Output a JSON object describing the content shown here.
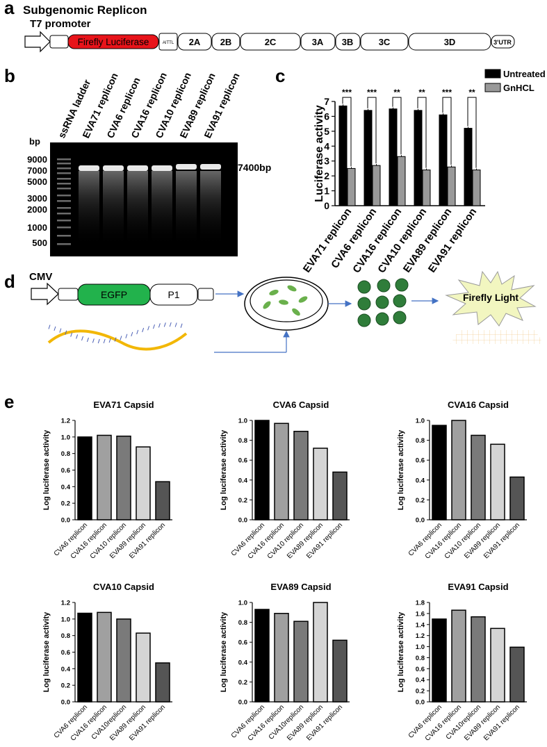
{
  "panel_a": {
    "letter": "a",
    "title": "Subgenomic Replicon",
    "promoter": "T7 promoter",
    "segments": [
      "Firefly Luciferase",
      "AITTL",
      "2A",
      "2B",
      "2C",
      "3A",
      "3B",
      "3C",
      "3D",
      "3'UTR"
    ],
    "luciferase_color": "#e8141a"
  },
  "panel_b": {
    "letter": "b",
    "lanes": [
      "ssRNA ladder",
      "EVA71 replicon",
      "CVA6 replicon",
      "CVA16 replicon",
      "CVA10 replicon",
      "EVA89 replicon",
      "EVA91 replicon"
    ],
    "bp_label": "bp",
    "ladder_marks": [
      "9000",
      "7000",
      "5000",
      "3000",
      "2000",
      "1000",
      "500"
    ],
    "band_label": "7400bp"
  },
  "panel_c": {
    "letter": "c",
    "legend": [
      "Untreated",
      "GnHCL"
    ],
    "significance": [
      "***",
      "***",
      "**",
      "**",
      "***",
      "**"
    ]
  },
  "panel_d": {
    "letter": "d",
    "promoter": "CMV",
    "box1": "EGFP",
    "box2": "P1",
    "output": "Firefly Light",
    "egfp_color": "#22b24c"
  },
  "panel_e": {
    "letter": "e"
  },
  "chart_data": [
    {
      "type": "bar",
      "ylabel": "Luciferase activity",
      "categories": [
        "EVA71 replicon",
        "CVA6 replicon",
        "CVA16 replicon",
        "CVA10 replicon",
        "EVA89 replicon",
        "EVA91 replicon"
      ],
      "series": [
        {
          "name": "Untreated",
          "values": [
            6.7,
            6.4,
            6.5,
            6.4,
            6.1,
            5.2
          ],
          "color": "#000000"
        },
        {
          "name": "GnHCL",
          "values": [
            2.5,
            2.7,
            3.3,
            2.4,
            2.6,
            2.4
          ],
          "color": "#999999"
        }
      ],
      "ylim": [
        0,
        7
      ],
      "yticks": [
        "0",
        "1",
        "2",
        "3",
        "4",
        "5",
        "6",
        "7"
      ]
    },
    {
      "type": "bar",
      "title": "EVA71 Capsid",
      "ylabel": "Log luciferase activity",
      "categories": [
        "CVA6 replicon",
        "CVA16 replicon",
        "CVA10 replicon",
        "EVA89 replicon",
        "EVA91 replicon"
      ],
      "values": [
        1.0,
        1.02,
        1.01,
        0.88,
        0.46
      ],
      "ylim": [
        0,
        1.2
      ],
      "yticks": [
        "0.0",
        "0.2",
        "0.4",
        "0.6",
        "0.8",
        "1.0",
        "1.2"
      ],
      "colors": [
        "#000000",
        "#a0a0a0",
        "#7a7a7a",
        "#d4d4d4",
        "#555555"
      ]
    },
    {
      "type": "bar",
      "title": "CVA6 Capsid",
      "ylabel": "Log luciferase activity",
      "categories": [
        "CVA6 replicon",
        "CVA16 replicon",
        "CVA10 replicon",
        "EVA89 replicon",
        "EVA91 replicon"
      ],
      "values": [
        1.0,
        0.97,
        0.89,
        0.72,
        0.48
      ],
      "ylim": [
        0,
        1.0
      ],
      "yticks": [
        "0.0",
        "0.2",
        "0.4",
        "0.6",
        "0.8",
        "1.0"
      ],
      "colors": [
        "#000000",
        "#a0a0a0",
        "#7a7a7a",
        "#d4d4d4",
        "#555555"
      ]
    },
    {
      "type": "bar",
      "title": "CVA16 Capsid",
      "ylabel": "Log luciferase activity",
      "categories": [
        "CVA6 replicon",
        "CVA16 replicon",
        "CVA10 replicon",
        "EVA89 replicon",
        "EVA91 replicon"
      ],
      "values": [
        0.95,
        1.0,
        0.85,
        0.76,
        0.43
      ],
      "ylim": [
        0,
        1.0
      ],
      "yticks": [
        "0.0",
        "0.2",
        "0.4",
        "0.6",
        "0.8",
        "1.0"
      ],
      "colors": [
        "#000000",
        "#a0a0a0",
        "#7a7a7a",
        "#d4d4d4",
        "#555555"
      ]
    },
    {
      "type": "bar",
      "title": "CVA10 Capsid",
      "ylabel": "Log luciferase activity",
      "categories": [
        "CVA6 replicon",
        "CVA16 replicon",
        "CVA10replicon",
        "EVA89 replicon",
        "EVA91 replicon"
      ],
      "values": [
        1.07,
        1.08,
        1.0,
        0.83,
        0.47
      ],
      "ylim": [
        0,
        1.2
      ],
      "yticks": [
        "0.0",
        "0.2",
        "0.4",
        "0.6",
        "0.8",
        "1.0",
        "1.2"
      ],
      "colors": [
        "#000000",
        "#a0a0a0",
        "#7a7a7a",
        "#d4d4d4",
        "#555555"
      ]
    },
    {
      "type": "bar",
      "title": "EVA89 Capsid",
      "ylabel": "Log luciferase activity",
      "categories": [
        "CVA6 replicon",
        "CVA16 replicon",
        "CVA10replicon",
        "EVA89 replicon",
        "EVA91 replicon"
      ],
      "values": [
        0.93,
        0.89,
        0.81,
        1.0,
        0.62
      ],
      "ylim": [
        0,
        1.0
      ],
      "yticks": [
        "0.0",
        "0.2",
        "0.4",
        "0.6",
        "0.8",
        "1.0"
      ],
      "colors": [
        "#000000",
        "#a0a0a0",
        "#7a7a7a",
        "#d4d4d4",
        "#555555"
      ]
    },
    {
      "type": "bar",
      "title": "EVA91 Capsid",
      "ylabel": "Log luciferase activity",
      "categories": [
        "CVA6 replicon",
        "CVA16 replicon",
        "CVA10replicon",
        "EVA89 replicon",
        "EVA91 replicon"
      ],
      "values": [
        1.5,
        1.66,
        1.54,
        1.33,
        0.99
      ],
      "ylim": [
        0,
        1.8
      ],
      "yticks": [
        "0.0",
        "0.2",
        "0.4",
        "0.6",
        "0.8",
        "1.0",
        "1.2",
        "1.4",
        "1.6",
        "1.8"
      ],
      "colors": [
        "#000000",
        "#a0a0a0",
        "#7a7a7a",
        "#d4d4d4",
        "#555555"
      ]
    }
  ]
}
